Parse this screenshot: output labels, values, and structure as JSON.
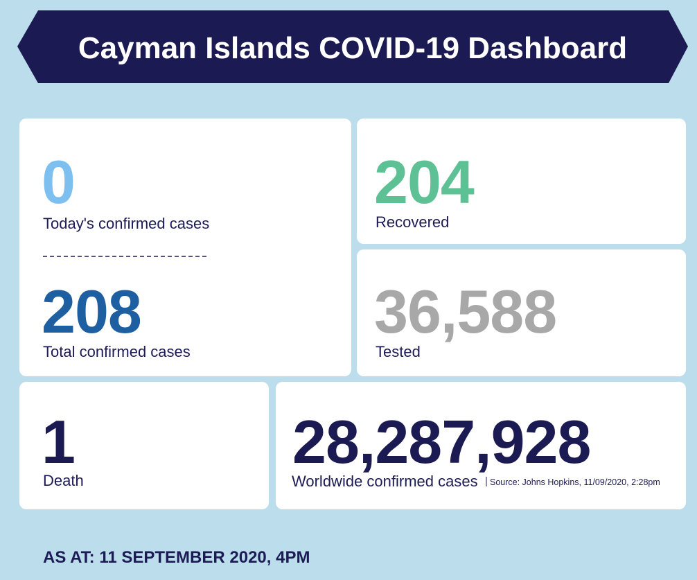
{
  "header": {
    "title": "Cayman Islands COVID-19 Dashboard"
  },
  "stats": [
    {
      "value": "0",
      "label": "Today's confirmed cases"
    },
    {
      "value": "208",
      "label": "Total confirmed cases"
    },
    {
      "value": "204",
      "label": "Recovered"
    },
    {
      "value": "36,588",
      "label": "Tested"
    },
    {
      "value": "1",
      "label": "Death"
    },
    {
      "value": "28,287,928",
      "label": "Worldwide confirmed cases",
      "source": "Source: Johns Hopkins, 11/09/2020, 2:28pm"
    }
  ],
  "footer": "AS AT: 11 SEPTEMBER 2020, 4PM"
}
